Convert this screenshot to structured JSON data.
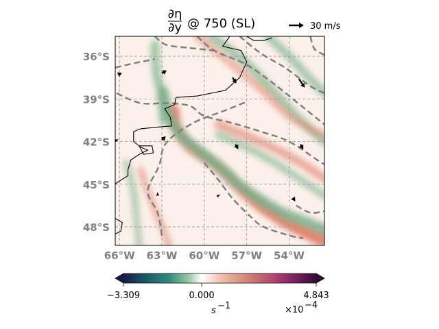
{
  "chart_data": {
    "type": "heatmap",
    "title": "∂η/∂y @ 750 (SL)",
    "title_fraction": {
      "num": "∂η",
      "den": "∂y"
    },
    "title_suffix": "@ 750 (SL)",
    "quiver_key_label": "30 m/s",
    "lat_ticks": [
      "36°S",
      "39°S",
      "42°S",
      "45°S",
      "48°S"
    ],
    "lat_values": [
      -36,
      -39,
      -42,
      -45,
      -48
    ],
    "lon_ticks": [
      "66°W",
      "63°W",
      "60°W",
      "57°W",
      "54°W"
    ],
    "lon_values": [
      -66,
      -63,
      -60,
      -57,
      -54
    ],
    "extent": {
      "lon": [
        -66.3,
        -51.5
      ],
      "lat": [
        -49.3,
        -34.6
      ]
    },
    "grid": true,
    "colorbar": {
      "min_label": "−3.309",
      "mid_label": "0.000",
      "max_label": "4.843",
      "min": -3.309,
      "mid": 0.0,
      "max": 4.843,
      "units": "s",
      "units_exp": "−1",
      "scale": "×10",
      "scale_exp": "−4",
      "colormap": "curl",
      "colors": [
        "#151d44",
        "#1c5a6a",
        "#338a80",
        "#9dc9a8",
        "#ffffff",
        "#eeb8a0",
        "#cf7c71",
        "#a93e6e",
        "#661a5a",
        "#340d35"
      ]
    },
    "dashed_contours": [
      {
        "name": "contour-1",
        "points": [
          [
            -63.0,
            -48.6
          ],
          [
            -63.3,
            -47.0
          ],
          [
            -64.0,
            -45.5
          ],
          [
            -63.2,
            -43.7
          ],
          [
            -62.7,
            -42.1
          ],
          [
            -60.8,
            -40.7
          ],
          [
            -58.5,
            -39.8
          ],
          [
            -57.0,
            -39.2
          ]
        ]
      },
      {
        "name": "contour-2",
        "points": [
          [
            -63.5,
            -34.6
          ],
          [
            -62.7,
            -35.2
          ],
          [
            -61.2,
            -35.4
          ],
          [
            -59.3,
            -35.6
          ]
        ]
      },
      {
        "name": "contour-3",
        "points": [
          [
            -60.5,
            -34.6
          ],
          [
            -59.3,
            -35.6
          ],
          [
            -57.0,
            -36.6
          ],
          [
            -55.0,
            -38.0
          ],
          [
            -53.0,
            -39.6
          ],
          [
            -51.5,
            -40.8
          ]
        ]
      },
      {
        "name": "contour-4",
        "points": [
          [
            -57.5,
            -34.6
          ],
          [
            -56.0,
            -35.8
          ],
          [
            -54.3,
            -36.8
          ],
          [
            -52.5,
            -38.1
          ],
          [
            -51.5,
            -38.6
          ]
        ]
      },
      {
        "name": "contour-5",
        "points": [
          [
            -66.2,
            -38.6
          ],
          [
            -64.5,
            -39.3
          ],
          [
            -62.5,
            -39.3
          ],
          [
            -61.0,
            -39.5
          ],
          [
            -60.0,
            -40.2
          ],
          [
            -58.0,
            -40.7
          ],
          [
            -56.0,
            -41.3
          ],
          [
            -54.0,
            -42.0
          ],
          [
            -52.0,
            -43.3
          ],
          [
            -51.5,
            -43.6
          ]
        ]
      },
      {
        "name": "contour-6",
        "points": [
          [
            -52.5,
            -34.6
          ],
          [
            -52.2,
            -35.5
          ],
          [
            -51.5,
            -35.9
          ]
        ]
      },
      {
        "name": "contour-7",
        "points": [
          [
            -66.3,
            -36.8
          ],
          [
            -65.0,
            -36.5
          ],
          [
            -63.5,
            -36.2
          ]
        ]
      },
      {
        "name": "contour-8",
        "points": [
          [
            -60.0,
            -43.5
          ],
          [
            -59.0,
            -44.7
          ],
          [
            -58.0,
            -46.0
          ],
          [
            -56.7,
            -47.3
          ],
          [
            -55.8,
            -48.0
          ],
          [
            -54.0,
            -48.6
          ],
          [
            -53.0,
            -48.8
          ]
        ]
      },
      {
        "name": "contour-9",
        "points": [
          [
            -53.5,
            -46.5
          ],
          [
            -52.5,
            -47.0
          ],
          [
            -51.5,
            -46.9
          ]
        ]
      }
    ],
    "coastline": [
      {
        "name": "coast-mainland",
        "points": [
          [
            -58.2,
            -34.6
          ],
          [
            -58.7,
            -35.3
          ],
          [
            -57.4,
            -35.6
          ],
          [
            -57.0,
            -36.4
          ],
          [
            -57.5,
            -37.5
          ],
          [
            -58.5,
            -38.4
          ],
          [
            -60.5,
            -38.8
          ],
          [
            -62.0,
            -38.9
          ],
          [
            -62.1,
            -39.4
          ],
          [
            -62.8,
            -39.7
          ],
          [
            -62.4,
            -40.3
          ],
          [
            -62.3,
            -40.9
          ],
          [
            -63.5,
            -41.0
          ],
          [
            -64.5,
            -41.1
          ],
          [
            -65.0,
            -41.3
          ],
          [
            -65.0,
            -42.0
          ],
          [
            -64.5,
            -42.4
          ],
          [
            -64.0,
            -42.6
          ],
          [
            -64.6,
            -42.9
          ],
          [
            -65.2,
            -43.3
          ],
          [
            -65.4,
            -44.0
          ],
          [
            -65.4,
            -44.4
          ],
          [
            -66.2,
            -44.9
          ],
          [
            -66.3,
            -45.0
          ]
        ]
      },
      {
        "name": "coast-peninsula",
        "points": [
          [
            -64.6,
            -42.3
          ],
          [
            -63.7,
            -42.3
          ],
          [
            -63.6,
            -42.8
          ],
          [
            -64.3,
            -42.9
          ],
          [
            -64.6,
            -42.3
          ]
        ]
      },
      {
        "name": "coast-south",
        "points": [
          [
            -66.3,
            -47.4
          ],
          [
            -65.8,
            -47.7
          ],
          [
            -65.9,
            -48.3
          ],
          [
            -66.3,
            -48.5
          ]
        ]
      },
      {
        "name": "coast-uruguay",
        "points": [
          [
            -57.0,
            -34.6
          ],
          [
            -56.5,
            -34.9
          ],
          [
            -55.8,
            -34.9
          ],
          [
            -55.2,
            -34.7
          ]
        ]
      }
    ],
    "vectors": [
      {
        "lon": -63.0,
        "lat": -37.2,
        "u": 0.5,
        "v": 0.3
      },
      {
        "lon": -66.1,
        "lat": -37.3,
        "u": 0.4,
        "v": 0.2
      },
      {
        "lon": -58.0,
        "lat": -37.5,
        "u": 0.4,
        "v": -0.6
      },
      {
        "lon": -53.3,
        "lat": -37.6,
        "u": 0.6,
        "v": -0.9
      },
      {
        "lon": -63.0,
        "lat": -41.9,
        "u": 0.4,
        "v": 0.4
      },
      {
        "lon": -66.2,
        "lat": -41.9,
        "u": 0.2,
        "v": 0.0
      },
      {
        "lon": -57.8,
        "lat": -42.2,
        "u": 0.3,
        "v": -0.5
      },
      {
        "lon": -53.2,
        "lat": -42.2,
        "u": 0.3,
        "v": -0.5
      },
      {
        "lon": -63.3,
        "lat": -45.7,
        "u": 0.0,
        "v": 0.2
      },
      {
        "lon": -59.0,
        "lat": -45.8,
        "u": 0.1,
        "v": 0.0
      },
      {
        "lon": -53.7,
        "lat": -46.0,
        "u": 0.2,
        "v": -0.3
      }
    ],
    "field_bands": [
      {
        "name": "green-band-nw",
        "sign": -1,
        "strength": 0.5,
        "points": [
          [
            -59.5,
            -34.6
          ],
          [
            -57.0,
            -36.5
          ],
          [
            -55.0,
            -38.6
          ],
          [
            -53.2,
            -40.5
          ],
          [
            -51.5,
            -42.0
          ]
        ]
      },
      {
        "name": "red-band-nw",
        "sign": 1,
        "strength": 0.3,
        "points": [
          [
            -60.5,
            -34.6
          ],
          [
            -58.0,
            -36.6
          ],
          [
            -56.0,
            -38.3
          ],
          [
            -54.0,
            -40.2
          ],
          [
            -51.5,
            -41.6
          ]
        ]
      },
      {
        "name": "green-band-ne",
        "sign": -1,
        "strength": 0.45,
        "points": [
          [
            -55.5,
            -34.6
          ],
          [
            -54.0,
            -36.0
          ],
          [
            -52.6,
            -37.5
          ],
          [
            -51.5,
            -38.6
          ]
        ]
      },
      {
        "name": "red-band-main",
        "sign": 1,
        "strength": 1.0,
        "points": [
          [
            -62.2,
            -39.8
          ],
          [
            -62.0,
            -41.0
          ],
          [
            -61.0,
            -42.3
          ],
          [
            -59.6,
            -43.3
          ],
          [
            -58.5,
            -44.2
          ],
          [
            -57.4,
            -45.3
          ],
          [
            -56.0,
            -46.5
          ],
          [
            -54.5,
            -47.5
          ],
          [
            -53.0,
            -48.3
          ],
          [
            -51.5,
            -49.0
          ]
        ]
      },
      {
        "name": "green-band-main",
        "sign": -1,
        "strength": 0.8,
        "points": [
          [
            -62.9,
            -38.5
          ],
          [
            -62.6,
            -40.0
          ],
          [
            -61.6,
            -41.6
          ],
          [
            -60.2,
            -42.8
          ],
          [
            -58.9,
            -43.8
          ],
          [
            -57.6,
            -45.0
          ],
          [
            -56.2,
            -46.0
          ],
          [
            -54.5,
            -47.0
          ],
          [
            -53.0,
            -47.6
          ],
          [
            -51.5,
            -48.2
          ]
        ]
      },
      {
        "name": "red-band-east",
        "sign": 1,
        "strength": 0.45,
        "points": [
          [
            -59.0,
            -40.8
          ],
          [
            -57.0,
            -41.6
          ],
          [
            -55.0,
            -42.5
          ],
          [
            -53.0,
            -43.6
          ],
          [
            -51.5,
            -44.6
          ]
        ]
      },
      {
        "name": "green-band-east",
        "sign": -1,
        "strength": 0.35,
        "points": [
          [
            -59.0,
            -41.5
          ],
          [
            -57.0,
            -42.4
          ],
          [
            -55.0,
            -43.5
          ],
          [
            -53.0,
            -44.8
          ],
          [
            -51.5,
            -45.8
          ]
        ]
      },
      {
        "name": "green-band-west",
        "sign": -1,
        "strength": 0.5,
        "points": [
          [
            -63.5,
            -35.2
          ],
          [
            -63.4,
            -37.0
          ],
          [
            -63.0,
            -39.0
          ],
          [
            -62.9,
            -40.5
          ]
        ]
      },
      {
        "name": "red-band-sw",
        "sign": 1,
        "strength": 0.25,
        "points": [
          [
            -64.5,
            -44.0
          ],
          [
            -63.8,
            -46.0
          ],
          [
            -63.0,
            -48.0
          ],
          [
            -62.5,
            -49.3
          ]
        ]
      },
      {
        "name": "green-band-sw",
        "sign": -1,
        "strength": 0.25,
        "points": [
          [
            -65.5,
            -43.5
          ],
          [
            -65.0,
            -45.5
          ],
          [
            -64.8,
            -47.5
          ],
          [
            -64.6,
            -49.3
          ]
        ]
      }
    ]
  }
}
